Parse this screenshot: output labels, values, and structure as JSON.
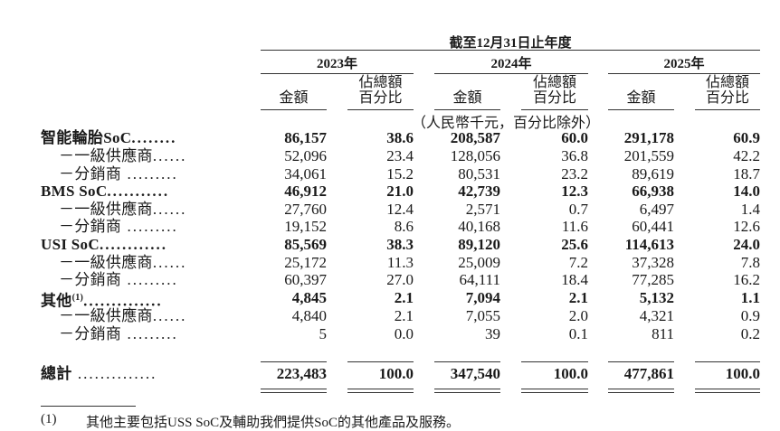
{
  "header": {
    "period": "截至12月31日止年度",
    "years": [
      "2023年",
      "2024年",
      "2025年"
    ],
    "amount_label": "金額",
    "pct_label_line1": "佔總額",
    "pct_label_line2": "百分比",
    "unit_note": "（人民幣千元，百分比除外）"
  },
  "rows": [
    {
      "label": "智能輪胎SoC",
      "dots": "........",
      "bold": true,
      "values": [
        "86,157",
        "38.6",
        "208,587",
        "60.0",
        "291,178",
        "60.9"
      ]
    },
    {
      "label": "－一級供應商",
      "dots": "......",
      "sub": true,
      "values": [
        "52,096",
        "23.4",
        "128,056",
        "36.8",
        "201,559",
        "42.2"
      ]
    },
    {
      "label": "－分銷商",
      "dots": " .........",
      "sub": true,
      "values": [
        "34,061",
        "15.2",
        "80,531",
        "23.2",
        "89,619",
        "18.7"
      ]
    },
    {
      "label": "BMS SoC",
      "dots": "...........",
      "bold": true,
      "values": [
        "46,912",
        "21.0",
        "42,739",
        "12.3",
        "66,938",
        "14.0"
      ]
    },
    {
      "label": "－一級供應商",
      "dots": "......",
      "sub": true,
      "values": [
        "27,760",
        "12.4",
        "2,571",
        "0.7",
        "6,497",
        "1.4"
      ]
    },
    {
      "label": "－分銷商",
      "dots": " .........",
      "sub": true,
      "values": [
        "19,152",
        "8.6",
        "40,168",
        "11.6",
        "60,441",
        "12.6"
      ]
    },
    {
      "label": "USI SoC",
      "dots": "............",
      "bold": true,
      "values": [
        "85,569",
        "38.3",
        "89,120",
        "25.6",
        "114,613",
        "24.0"
      ]
    },
    {
      "label": "－一級供應商",
      "dots": "......",
      "sub": true,
      "values": [
        "25,172",
        "11.3",
        "25,009",
        "7.2",
        "37,328",
        "7.8"
      ]
    },
    {
      "label": "－分銷商",
      "dots": " .........",
      "sub": true,
      "values": [
        "60,397",
        "27.0",
        "64,111",
        "18.4",
        "77,285",
        "16.2"
      ]
    },
    {
      "label": "其他",
      "sup": "(1)",
      "dots": "..............",
      "bold": true,
      "values": [
        "4,845",
        "2.1",
        "7,094",
        "2.1",
        "5,132",
        "1.1"
      ]
    },
    {
      "label": "－一級供應商",
      "dots": "......",
      "sub": true,
      "values": [
        "4,840",
        "2.1",
        "7,055",
        "2.0",
        "4,321",
        "0.9"
      ]
    },
    {
      "label": "－分銷商",
      "dots": " .........",
      "sub": true,
      "values": [
        "5",
        "0.0",
        "39",
        "0.1",
        "811",
        "0.2"
      ]
    }
  ],
  "total": {
    "label": "總計",
    "dots": " ..............",
    "values": [
      "223,483",
      "100.0",
      "347,540",
      "100.0",
      "477,861",
      "100.0"
    ]
  },
  "footnote": {
    "marker": "(1)",
    "text": "其他主要包括USS SoC及輔助我們提供SoC的其他產品及服務。"
  }
}
